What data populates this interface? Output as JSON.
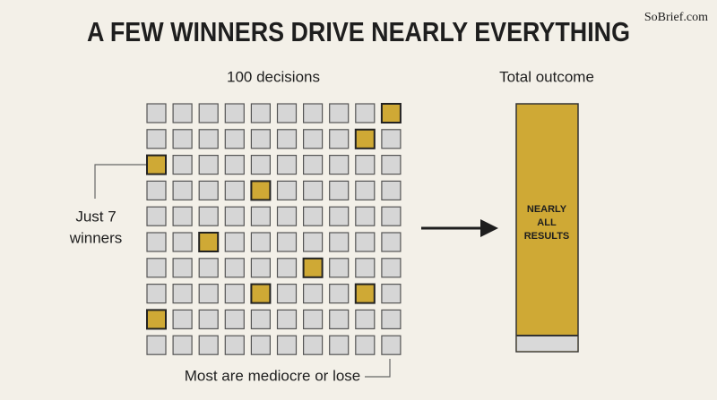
{
  "header": {
    "title": "A FEW WINNERS DRIVE NEARLY EVERYTHING",
    "brand": "SoBrief.com"
  },
  "grid": {
    "label": "100 decisions",
    "annotation": [
      "Just 7",
      "winners"
    ],
    "footer": "Most are mediocre or lose"
  },
  "outcome": {
    "label": "Total outcome",
    "bar_text": [
      "NEARLY",
      "ALL",
      "RESULTS"
    ]
  }
}
